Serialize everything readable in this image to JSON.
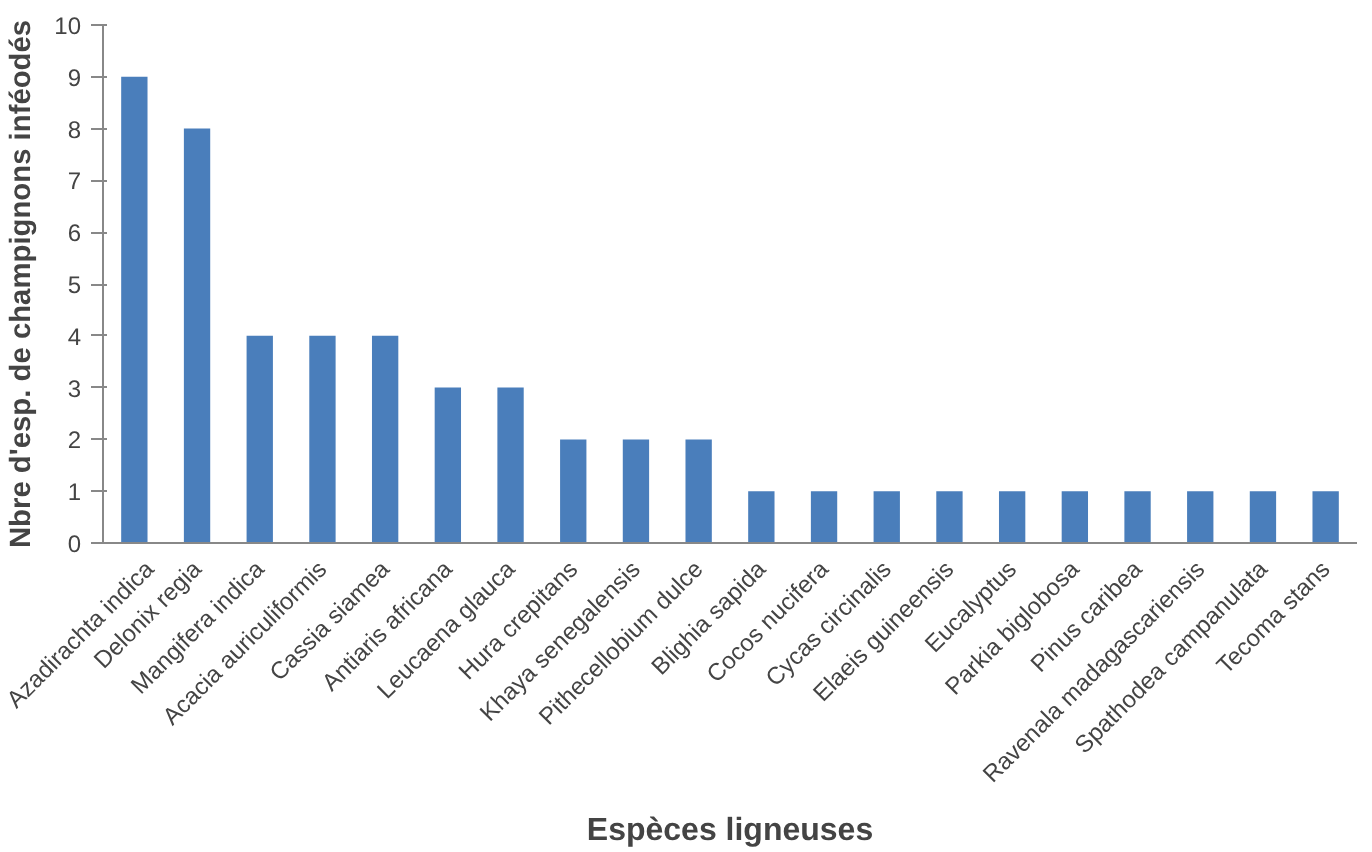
{
  "chart_data": {
    "type": "bar",
    "xlabel": "Espèces ligneuses",
    "ylabel": "Nbre d'esp. de champignons inféodés",
    "categories": [
      "Azadirachta indica",
      "Delonix regia",
      "Mangifera indica",
      "Acacia auriculiformis",
      "Cassia siamea",
      "Antiaris africana",
      "Leucaena glauca",
      "Hura crepitans",
      "Khaya senegalensis",
      "Pithecellobium dulce",
      "Blighia sapida",
      "Cocos nucifera",
      "Cycas circinalis",
      "Elaeis guineensis",
      "Eucalyptus",
      "Parkia biglobosa",
      "Pinus caribea",
      "Ravenala madagascariensis",
      "Spathodea campanulata",
      "Tecoma stans"
    ],
    "values": [
      9,
      8,
      4,
      4,
      4,
      3,
      3,
      2,
      2,
      2,
      1,
      1,
      1,
      1,
      1,
      1,
      1,
      1,
      1,
      1
    ],
    "color": "#4a7ebb",
    "ylim": [
      0,
      10
    ],
    "yticks": [
      0,
      1,
      2,
      3,
      4,
      5,
      6,
      7,
      8,
      9,
      10
    ],
    "grid": false
  }
}
